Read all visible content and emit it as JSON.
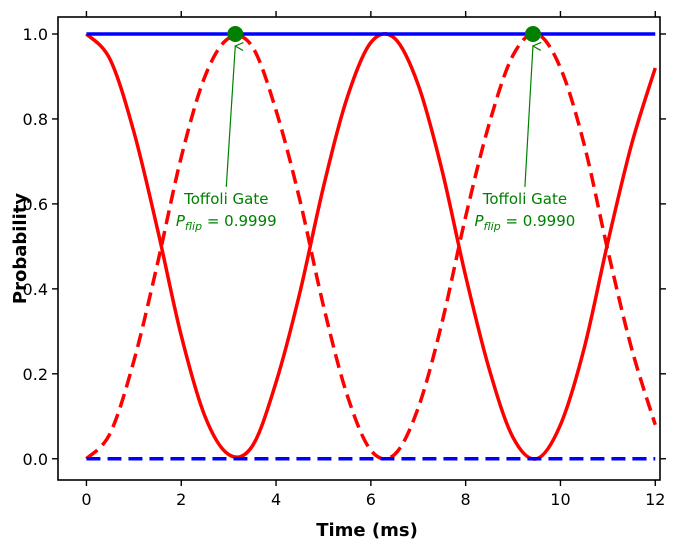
{
  "chart_data": {
    "type": "line",
    "title": "",
    "xlabel": "Time (ms)",
    "ylabel": "Probability",
    "xlim": [
      -0.6,
      12.1
    ],
    "ylim": [
      -0.05,
      1.04
    ],
    "xticks": [
      0,
      2,
      4,
      6,
      8,
      10,
      12
    ],
    "xtick_labels": [
      "0",
      "2",
      "4",
      "6",
      "8",
      "10",
      "12"
    ],
    "yticks": [
      0.0,
      0.2,
      0.4,
      0.6,
      0.8,
      1.0
    ],
    "ytick_labels": [
      "0.0",
      "0.2",
      "0.4",
      "0.6",
      "0.8",
      "1.0"
    ],
    "grid": false,
    "x": [
      0,
      0.5,
      1,
      1.5,
      2,
      2.5,
      3,
      3.5,
      4,
      4.5,
      5,
      5.5,
      6,
      6.5,
      7,
      7.5,
      8,
      8.5,
      9,
      9.5,
      10,
      10.5,
      11,
      11.5,
      12
    ],
    "series": [
      {
        "style": "solid",
        "color": "#ff0000",
        "values": [
          1.0,
          0.94,
          0.77,
          0.54,
          0.29,
          0.1,
          0.01,
          0.03,
          0.18,
          0.39,
          0.64,
          0.85,
          0.98,
          0.99,
          0.88,
          0.68,
          0.43,
          0.21,
          0.05,
          0.0,
          0.08,
          0.26,
          0.51,
          0.74,
          0.92
        ]
      },
      {
        "style": "dashed",
        "color": "#ff0000",
        "values": [
          0.0,
          0.06,
          0.23,
          0.46,
          0.71,
          0.9,
          0.99,
          0.97,
          0.82,
          0.61,
          0.36,
          0.15,
          0.02,
          0.01,
          0.12,
          0.32,
          0.57,
          0.79,
          0.95,
          1.0,
          0.92,
          0.74,
          0.49,
          0.26,
          0.08
        ]
      },
      {
        "style": "solid",
        "color": "#0000ff",
        "values": [
          1.0,
          1.0,
          1.0,
          1.0,
          1.0,
          1.0,
          1.0,
          1.0,
          1.0,
          1.0,
          1.0,
          1.0,
          1.0,
          1.0,
          1.0,
          1.0,
          1.0,
          1.0,
          1.0,
          1.0,
          1.0,
          1.0,
          1.0,
          1.0,
          1.0
        ]
      },
      {
        "style": "dashed",
        "color": "#0000ff",
        "values": [
          0.0,
          0.0,
          0.0,
          0.0,
          0.0,
          0.0,
          0.0,
          0.0,
          0.0,
          0.0,
          0.0,
          0.0,
          0.0,
          0.0,
          0.0,
          0.0,
          0.0,
          0.0,
          0.0,
          0.0,
          0.0,
          0.0,
          0.0,
          0.0,
          0.0
        ]
      }
    ],
    "markers": [
      {
        "x": 3.14,
        "y": 1.0,
        "color": "#008000"
      },
      {
        "x": 9.42,
        "y": 1.0,
        "color": "#008000"
      }
    ],
    "annotations": [
      {
        "line1": "Toffoli Gate",
        "p_symbol": "P",
        "p_sub": "flip",
        "p_value": "= 0.9999",
        "x": 3.14,
        "y": 1.0,
        "text_x": 2.95,
        "text_y": 0.6,
        "color": "#008000"
      },
      {
        "line1": "Toffoli Gate",
        "p_symbol": "P",
        "p_sub": "flip",
        "p_value": "= 0.9990",
        "x": 9.42,
        "y": 1.0,
        "text_x": 9.25,
        "text_y": 0.6,
        "color": "#008000"
      }
    ]
  }
}
